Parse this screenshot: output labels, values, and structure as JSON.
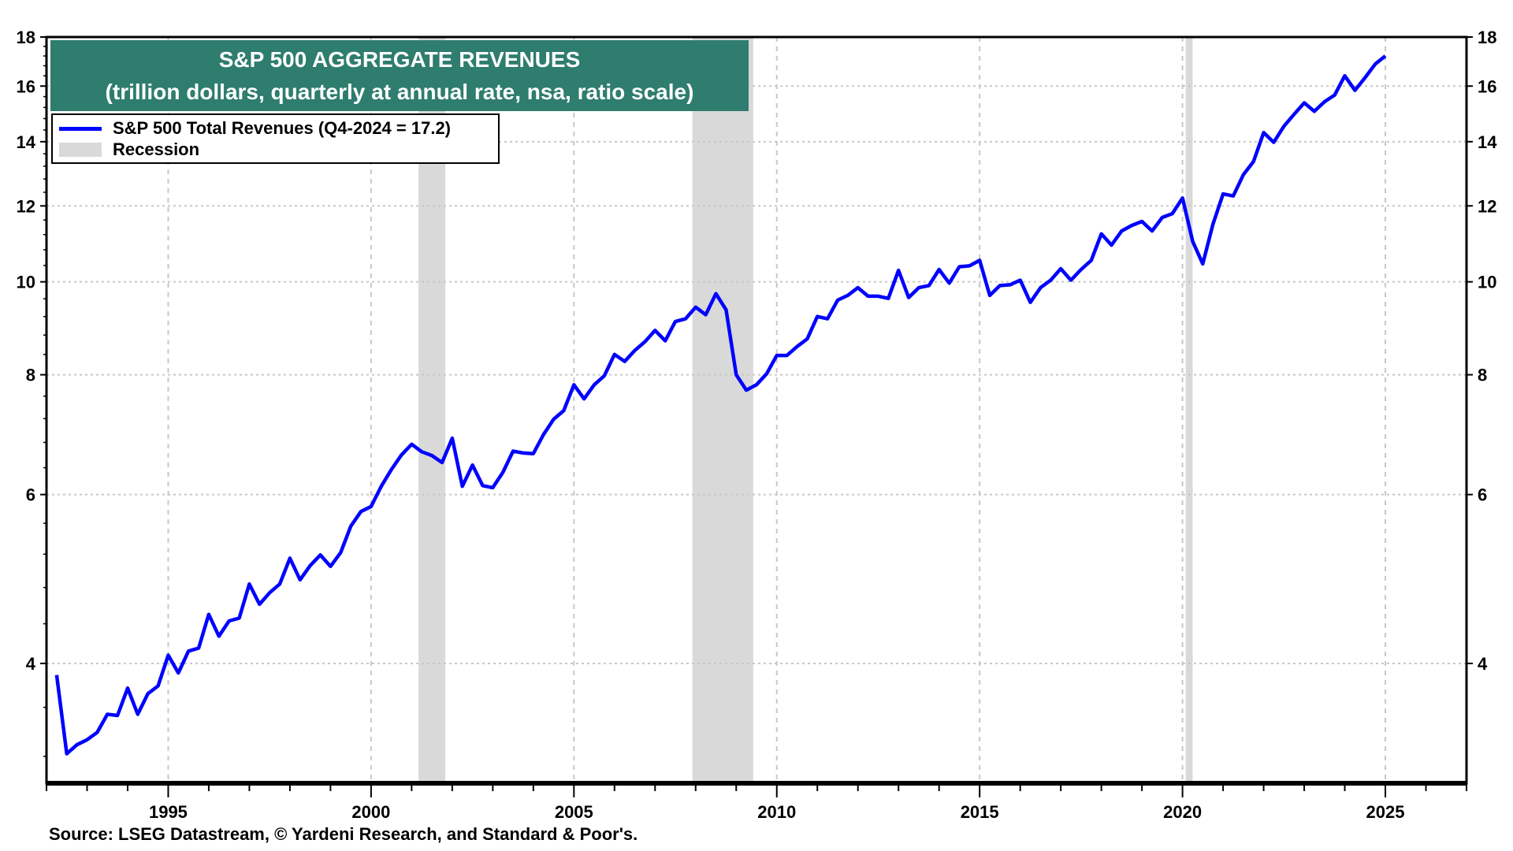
{
  "chart_data": {
    "type": "line",
    "title": "S&P 500 AGGREGATE REVENUES",
    "subtitle": "(trillion dollars, quarterly at annual rate, nsa, ratio scale)",
    "yscale": "log",
    "ylim": [
      3,
      18
    ],
    "xlim": [
      1992,
      2027
    ],
    "y_ticks": [
      "4",
      "6",
      "8",
      "10",
      "12",
      "14",
      "16",
      "18"
    ],
    "x_ticks": [
      "1995",
      "2000",
      "2005",
      "2010",
      "2015",
      "2020",
      "2025"
    ],
    "grid": true,
    "legend_placement": "top-left",
    "legend": [
      {
        "label": "S&P 500 Total Revenues (Q4-2024 = 17.2)",
        "color": "#0000ff"
      },
      {
        "label": "Recession",
        "color": "#d9d9d9"
      }
    ],
    "recessions": [
      [
        2001.17,
        2001.83
      ],
      [
        2007.92,
        2009.42
      ],
      [
        2020.08,
        2020.25
      ]
    ],
    "series": [
      {
        "name": "S&P 500 Total Revenues",
        "color": "#0000ff",
        "x_start": 1992.25,
        "x_step": 0.25,
        "values": [
          3.89,
          3.22,
          3.29,
          3.33,
          3.39,
          3.54,
          3.53,
          3.77,
          3.54,
          3.72,
          3.79,
          4.08,
          3.91,
          4.12,
          4.15,
          4.5,
          4.27,
          4.43,
          4.46,
          4.84,
          4.61,
          4.74,
          4.84,
          5.15,
          4.89,
          5.06,
          5.19,
          5.05,
          5.22,
          5.56,
          5.76,
          5.83,
          6.12,
          6.37,
          6.6,
          6.77,
          6.65,
          6.59,
          6.48,
          6.87,
          6.12,
          6.44,
          6.13,
          6.1,
          6.33,
          6.66,
          6.63,
          6.62,
          6.93,
          7.19,
          7.34,
          7.81,
          7.55,
          7.81,
          7.98,
          8.4,
          8.26,
          8.48,
          8.66,
          8.9,
          8.68,
          9.09,
          9.15,
          9.41,
          9.24,
          9.72,
          9.35,
          8.0,
          7.71,
          7.81,
          8.02,
          8.38,
          8.38,
          8.56,
          8.72,
          9.2,
          9.15,
          9.57,
          9.68,
          9.86,
          9.66,
          9.66,
          9.61,
          10.28,
          9.63,
          9.86,
          9.91,
          10.3,
          9.97,
          10.37,
          10.39,
          10.53,
          9.68,
          9.91,
          9.93,
          10.04,
          9.52,
          9.86,
          10.04,
          10.32,
          10.04,
          10.3,
          10.53,
          11.22,
          10.92,
          11.3,
          11.45,
          11.56,
          11.3,
          11.67,
          11.78,
          12.23,
          11.02,
          10.44,
          11.48,
          12.35,
          12.29,
          12.93,
          13.35,
          14.31,
          13.98,
          14.53,
          14.95,
          15.37,
          15.06,
          15.41,
          15.66,
          16.4,
          15.84,
          16.33,
          16.87,
          17.2
        ]
      }
    ],
    "source": "Source: LSEG Datastream, © Yardeni Research, and Standard & Poor's."
  }
}
